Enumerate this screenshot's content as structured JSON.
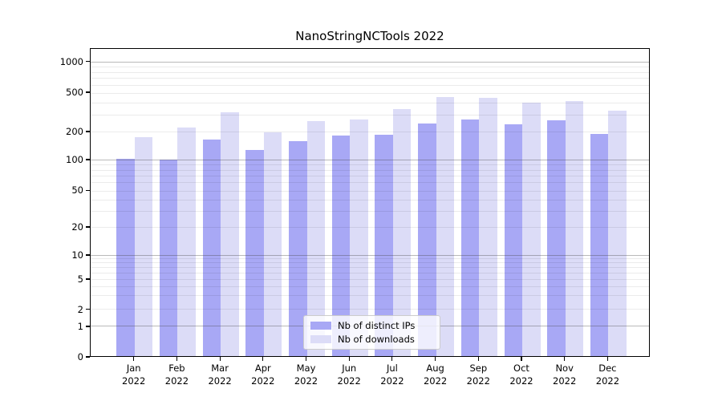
{
  "chart_data": {
    "type": "bar",
    "title": "NanoStringNCTools 2022",
    "x": {
      "months": [
        "Jan",
        "Feb",
        "Mar",
        "Apr",
        "May",
        "Jun",
        "Jul",
        "Aug",
        "Sep",
        "Oct",
        "Nov",
        "Dec"
      ],
      "year": "2022"
    },
    "series": [
      {
        "name": "Nb of distinct IPs",
        "color": "#a8a8f5",
        "values": [
          103,
          100,
          165,
          128,
          160,
          183,
          187,
          242,
          265,
          238,
          262,
          190
        ]
      },
      {
        "name": "Nb of downloads",
        "color": "#dcdcf7",
        "values": [
          176,
          220,
          318,
          198,
          257,
          267,
          341,
          455,
          444,
          394,
          412,
          328
        ]
      }
    ],
    "yticks": [
      0,
      1,
      2,
      5,
      10,
      20,
      50,
      100,
      200,
      500,
      1000
    ],
    "yscale": "log-like with 0 baseline",
    "ylim": [
      0,
      1300
    ],
    "grid": {
      "major": [
        1,
        10,
        100,
        1000
      ],
      "minor_multiples_per_decade": [
        2,
        3,
        4,
        5,
        6,
        7,
        8,
        9
      ]
    },
    "legend": {
      "position": "lower-center-inside",
      "entries": [
        "Nb of distinct IPs",
        "Nb of downloads"
      ]
    }
  }
}
